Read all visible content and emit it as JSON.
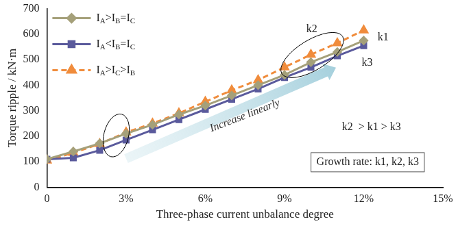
{
  "chart_data": {
    "type": "line",
    "x_label": "Three-phase current unbalance degree",
    "y_label": "Torque ripple / kN·m",
    "xlim": [
      0,
      15
    ],
    "xticks": [
      0,
      {
        "value": 3,
        "label": "3%"
      },
      {
        "value": 6,
        "label": "6%"
      },
      {
        "value": 9,
        "label": "9%"
      },
      {
        "value": 12,
        "label": "12%"
      },
      {
        "value": 15,
        "label": "15%"
      }
    ],
    "ylim": [
      0,
      700
    ],
    "yticks": [
      0,
      100,
      200,
      300,
      400,
      500,
      600,
      700
    ],
    "grid": false,
    "legend": "upper left",
    "x": [
      0,
      1,
      2,
      3,
      4,
      5,
      6,
      7,
      8,
      9,
      10,
      11,
      12
    ],
    "series": [
      {
        "name": "IA>IB=IC",
        "color": "#a5a07a",
        "marker": "diamond",
        "line_style": "solid",
        "values": [
          110,
          140,
          172,
          210,
          245,
          285,
          320,
          360,
          400,
          440,
          490,
          530,
          575
        ]
      },
      {
        "name": "IA<IB=IC",
        "color": "#5a5a9c",
        "marker": "square",
        "line_style": "solid",
        "values": [
          110,
          115,
          145,
          185,
          225,
          265,
          305,
          345,
          385,
          430,
          470,
          515,
          555
        ]
      },
      {
        "name": "IA>IC>IB",
        "color": "#f08c3c",
        "marker": "triangle",
        "line_style": "dashed",
        "values": [
          105,
          135,
          170,
          215,
          250,
          290,
          335,
          380,
          420,
          470,
          520,
          565,
          615
        ]
      }
    ],
    "annotations": [
      "k2",
      "k1",
      "k3",
      "Increase linearly",
      "k2  > k1 > k3",
      "Growth rate: k1, k2, k3"
    ]
  }
}
